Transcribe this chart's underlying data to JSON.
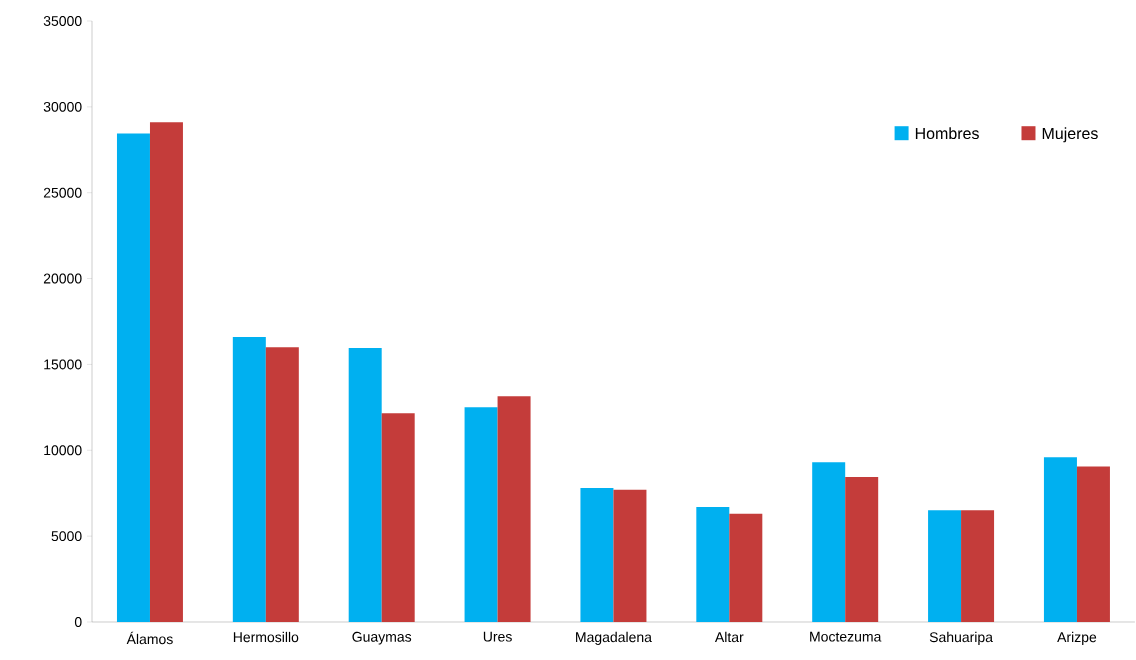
{
  "chart_data": {
    "type": "bar",
    "categories": [
      "Álamos",
      "Hermosillo",
      "Guaymas",
      "Ures",
      "Magadalena",
      "Altar",
      "Moctezuma",
      "Sahuaripa",
      "Arizpe"
    ],
    "series": [
      {
        "name": "Hombres",
        "color": "#00b0f0",
        "values": [
          28450,
          16600,
          15950,
          12500,
          7800,
          6700,
          9300,
          6500,
          9600
        ]
      },
      {
        "name": "Mujeres",
        "color": "#c43c3a",
        "values": [
          29100,
          16000,
          12150,
          13150,
          7700,
          6300,
          8450,
          6500,
          9050
        ]
      }
    ],
    "ylim": [
      0,
      35000
    ],
    "yticks": [
      0,
      5000,
      10000,
      15000,
      20000,
      25000,
      30000,
      35000
    ],
    "grid": false,
    "legend": "top right"
  }
}
